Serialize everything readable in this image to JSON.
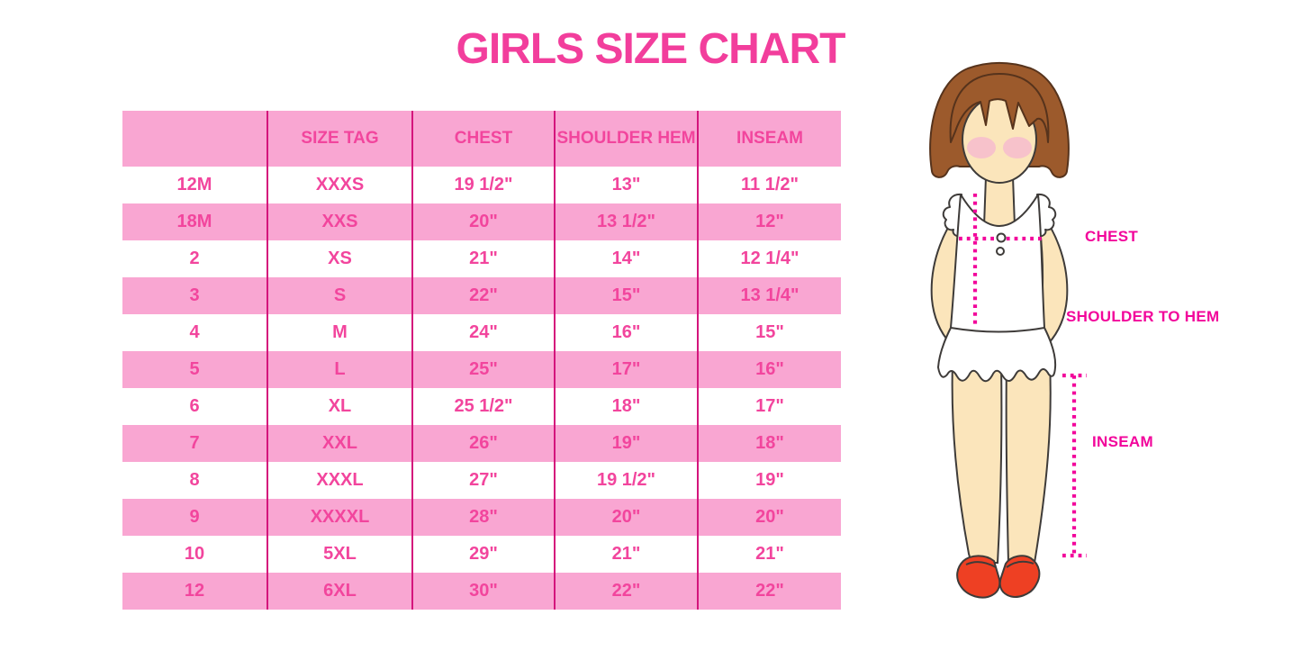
{
  "title": "GIRLS SIZE CHART",
  "table": {
    "headers": [
      "",
      "SIZE TAG",
      "CHEST",
      "SHOULDER HEM",
      "INSEAM"
    ],
    "rows": [
      [
        "12M",
        "XXXS",
        "19 1/2\"",
        "13\"",
        "11 1/2\""
      ],
      [
        "18M",
        "XXS",
        "20\"",
        "13 1/2\"",
        "12\""
      ],
      [
        "2",
        "XS",
        "21\"",
        "14\"",
        "12 1/4\""
      ],
      [
        "3",
        "S",
        "22\"",
        "15\"",
        "13 1/4\""
      ],
      [
        "4",
        "M",
        "24\"",
        "16\"",
        "15\""
      ],
      [
        "5",
        "L",
        "25\"",
        "17\"",
        "16\""
      ],
      [
        "6",
        "XL",
        "25 1/2\"",
        "18\"",
        "17\""
      ],
      [
        "7",
        "XXL",
        "26\"",
        "19\"",
        "18\""
      ],
      [
        "8",
        "XXXL",
        "27\"",
        "19 1/2\"",
        "19\""
      ],
      [
        "9",
        "XXXXL",
        "28\"",
        "20\"",
        "20\""
      ],
      [
        "10",
        "5XL",
        "29\"",
        "21\"",
        "21\""
      ],
      [
        "12",
        "6XL",
        "30\"",
        "22\"",
        "22\""
      ]
    ]
  },
  "diagram": {
    "chest_label": "CHEST",
    "shoulder_to_hem_label": "SHOULDER TO HEM",
    "inseam_label": "INSEAM"
  },
  "colors": {
    "title_pink": "#F23E9C",
    "band_pink": "#F9A6D2",
    "grid_magenta": "#D4157C",
    "label_magenta": "#F2059B",
    "hair_brown": "#9C5A2C",
    "skin": "#FBE5BB",
    "shoe_red": "#EE4023"
  }
}
